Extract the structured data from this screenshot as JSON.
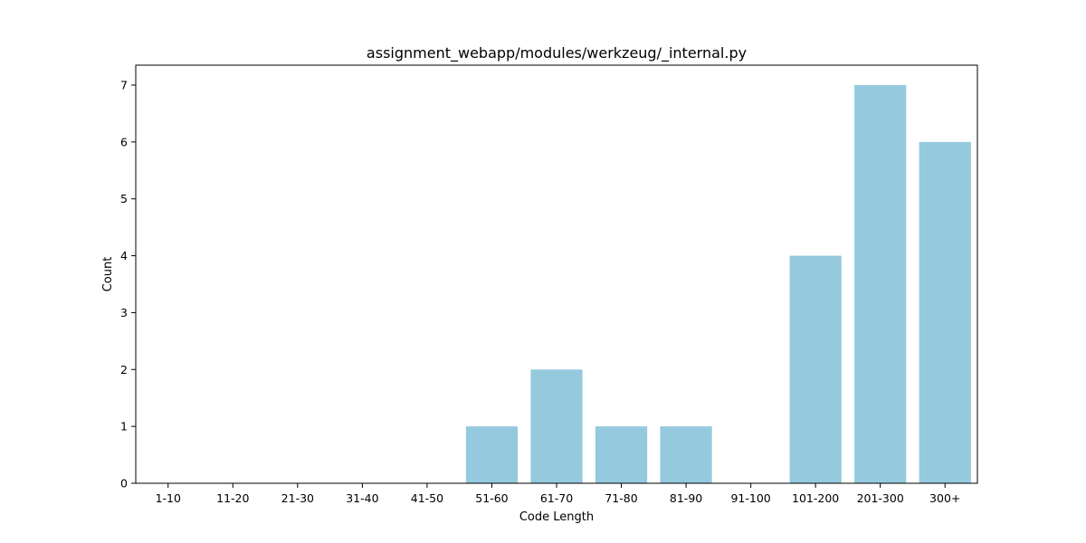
{
  "chart_data": {
    "type": "bar",
    "title": "assignment_webapp/modules/werkzeug/_internal.py",
    "xlabel": "Code Length",
    "ylabel": "Count",
    "categories": [
      "1-10",
      "11-20",
      "21-30",
      "31-40",
      "41-50",
      "51-60",
      "61-70",
      "71-80",
      "81-90",
      "91-100",
      "101-200",
      "201-300",
      "300+"
    ],
    "values": [
      0,
      0,
      0,
      0,
      0,
      1,
      2,
      1,
      1,
      0,
      4,
      7,
      6
    ],
    "ylim": [
      0,
      7.35
    ],
    "yticks": [
      0,
      1,
      2,
      3,
      4,
      5,
      6,
      7
    ],
    "bar_color": "#95c9de",
    "grid": false,
    "legend": "none"
  }
}
